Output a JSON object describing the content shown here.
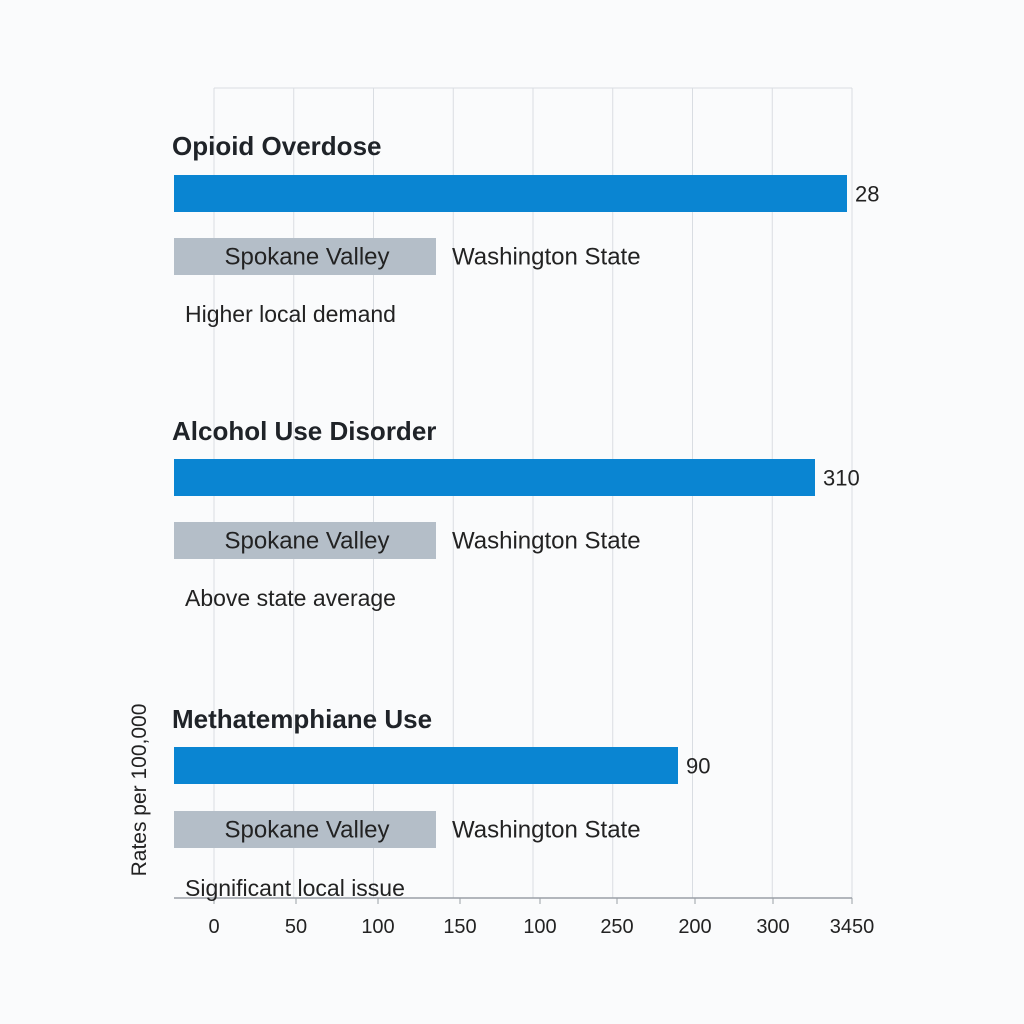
{
  "chart_data": {
    "type": "bar",
    "orientation": "horizontal",
    "ylabel": "Rates per 100,000",
    "x_tick_labels": [
      "0",
      "50",
      "100",
      "150",
      "100",
      "250",
      "200",
      "300",
      "3450"
    ],
    "xlim": [
      0,
      400
    ],
    "grid": true,
    "colors": {
      "bar": "#0a85d2",
      "legend_box": "#b4bec8",
      "grid": "#d9dde2",
      "axis": "#9aa0a6"
    },
    "groups": [
      {
        "title": "Opioid Overdose",
        "value": 28,
        "value_label": "28",
        "legend": [
          "Spokane Valley",
          "Washington State"
        ],
        "note": "Higher local demand"
      },
      {
        "title": "Alcohol Use Disorder",
        "value": 310,
        "value_label": "310",
        "legend": [
          "Spokane Valley",
          "Washington State"
        ],
        "note": "Above state average"
      },
      {
        "title": "Methatemphiane Use",
        "value": 90,
        "value_label": "90",
        "legend": [
          "Spokane Valley",
          "Washington State"
        ],
        "note": "Significant local issue"
      }
    ]
  }
}
